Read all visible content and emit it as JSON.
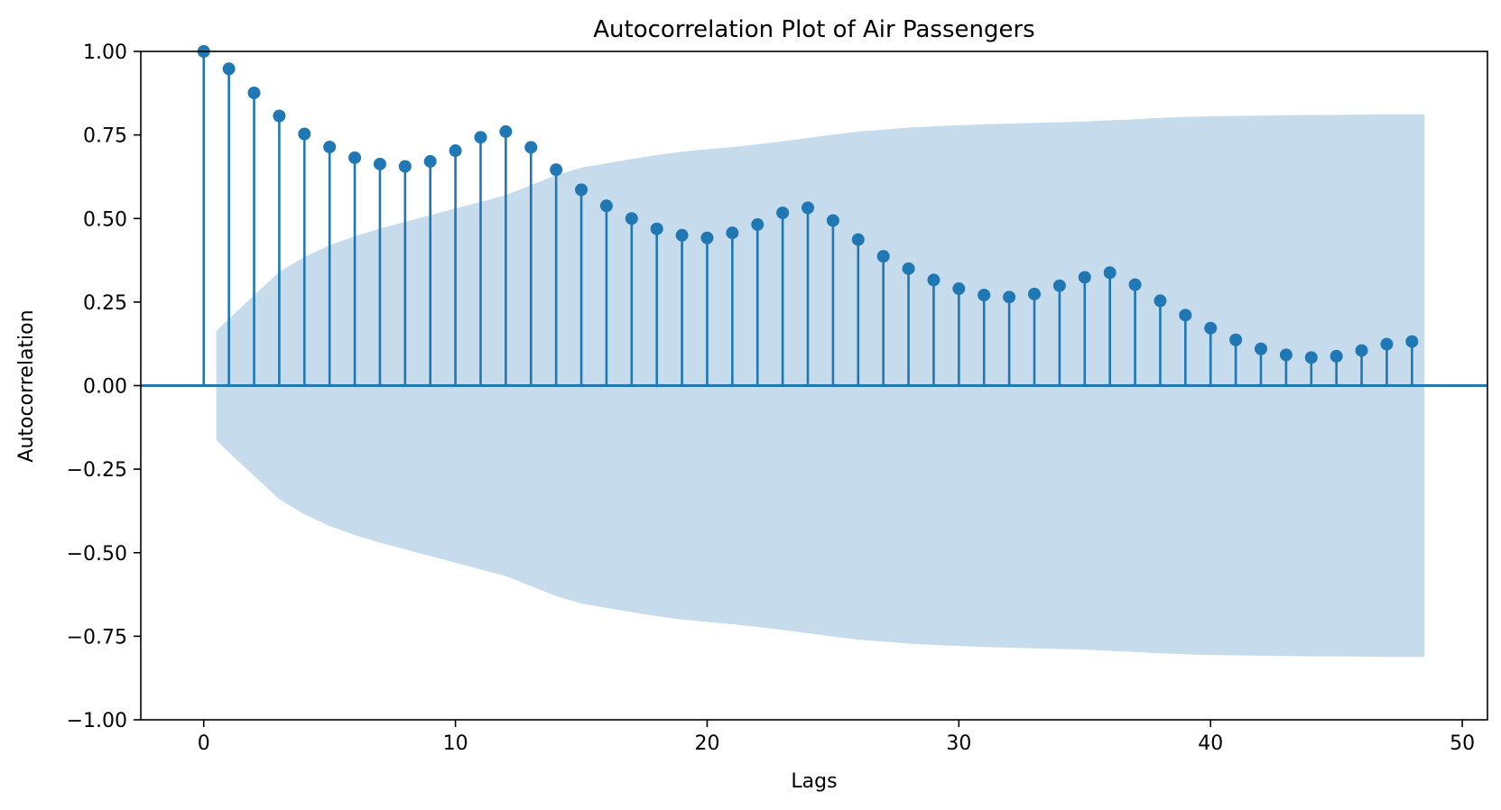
{
  "chart_data": {
    "type": "stem",
    "title": "Autocorrelation Plot of Air Passengers",
    "xlabel": "Lags",
    "ylabel": "Autocorrelation",
    "xlim": [
      -2.5,
      51
    ],
    "ylim": [
      -1.0,
      1.0
    ],
    "xticks": [
      0,
      10,
      20,
      30,
      40,
      50
    ],
    "yticks": [
      -1.0,
      -0.75,
      -0.5,
      -0.25,
      0.0,
      0.25,
      0.5,
      0.75,
      1.0
    ],
    "xtick_labels": [
      "0",
      "10",
      "20",
      "30",
      "40",
      "50"
    ],
    "ytick_labels": [
      "−1.00",
      "−0.75",
      "−0.50",
      "−0.25",
      "0.00",
      "0.25",
      "0.50",
      "0.75",
      "1.00"
    ],
    "grid": false,
    "legend": "none",
    "colors": {
      "stem": "#1f77b4",
      "confidence_band": "#c6dbec"
    },
    "lags": [
      0,
      1,
      2,
      3,
      4,
      5,
      6,
      7,
      8,
      9,
      10,
      11,
      12,
      13,
      14,
      15,
      16,
      17,
      18,
      19,
      20,
      21,
      22,
      23,
      24,
      25,
      26,
      27,
      28,
      29,
      30,
      31,
      32,
      33,
      34,
      35,
      36,
      37,
      38,
      39,
      40,
      41,
      42,
      43,
      44,
      45,
      46,
      47,
      48
    ],
    "values": [
      1.0,
      0.948,
      0.876,
      0.807,
      0.753,
      0.714,
      0.682,
      0.663,
      0.656,
      0.671,
      0.703,
      0.743,
      0.76,
      0.713,
      0.646,
      0.586,
      0.538,
      0.5,
      0.469,
      0.45,
      0.442,
      0.457,
      0.482,
      0.517,
      0.532,
      0.494,
      0.437,
      0.387,
      0.35,
      0.316,
      0.29,
      0.271,
      0.265,
      0.274,
      0.299,
      0.324,
      0.338,
      0.302,
      0.254,
      0.211,
      0.172,
      0.137,
      0.11,
      0.092,
      0.084,
      0.088,
      0.105,
      0.124,
      0.132
    ],
    "confidence_band": {
      "lags": [
        0.5,
        1,
        2,
        3,
        4,
        5,
        6,
        7,
        8,
        9,
        10,
        11,
        12,
        13,
        14,
        15,
        16,
        17,
        18,
        19,
        20,
        21,
        22,
        23,
        24,
        25,
        26,
        27,
        28,
        29,
        30,
        31,
        32,
        33,
        34,
        35,
        36,
        37,
        38,
        39,
        40,
        41,
        42,
        43,
        44,
        45,
        46,
        47,
        48,
        48.5
      ],
      "upper": [
        0.163,
        0.2,
        0.27,
        0.34,
        0.385,
        0.42,
        0.447,
        0.47,
        0.49,
        0.51,
        0.53,
        0.55,
        0.57,
        0.6,
        0.63,
        0.652,
        0.665,
        0.678,
        0.69,
        0.7,
        0.707,
        0.714,
        0.722,
        0.731,
        0.741,
        0.751,
        0.76,
        0.766,
        0.772,
        0.776,
        0.779,
        0.782,
        0.784,
        0.786,
        0.788,
        0.79,
        0.794,
        0.797,
        0.801,
        0.804,
        0.806,
        0.807,
        0.808,
        0.809,
        0.81,
        0.81,
        0.811,
        0.812,
        0.812,
        0.812
      ]
    }
  }
}
